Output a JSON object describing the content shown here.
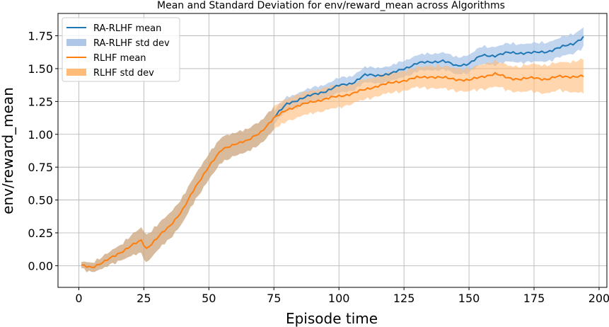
{
  "chart_data": {
    "type": "line",
    "title": "Mean and Standard Deviation for env/reward_mean across Algorithms",
    "xlabel": "Episode time",
    "ylabel": "env/reward_mean",
    "xlim": [
      -8,
      203
    ],
    "ylim": [
      -0.165,
      1.92
    ],
    "xticks": [
      0,
      25,
      50,
      75,
      100,
      125,
      150,
      175,
      200
    ],
    "xtick_labels": [
      "0",
      "25",
      "50",
      "75",
      "100",
      "125",
      "150",
      "175",
      "200"
    ],
    "yticks": [
      0.0,
      0.25,
      0.5,
      0.75,
      1.0,
      1.25,
      1.5,
      1.75
    ],
    "ytick_labels": [
      "0.00",
      "0.25",
      "0.50",
      "0.75",
      "1.00",
      "1.25",
      "1.50",
      "1.75"
    ],
    "grid": true,
    "legend_position": "top-left",
    "legend": [
      {
        "label": "RA-RLHF mean",
        "kind": "line",
        "color": "#1f77b4"
      },
      {
        "label": "RA-RLHF std dev",
        "kind": "band",
        "color": "#1f77b4"
      },
      {
        "label": "RLHF mean",
        "kind": "line",
        "color": "#ff7f0e"
      },
      {
        "label": "RLHF std dev",
        "kind": "band",
        "color": "#ff7f0e"
      }
    ],
    "series": [
      {
        "name": "RLHF mean",
        "color": "#ff7f0e",
        "band_color": "#ffbb78",
        "x": [
          1,
          5,
          10,
          15,
          20,
          24,
          26,
          30,
          35,
          40,
          45,
          50,
          55,
          60,
          65,
          70,
          75,
          80,
          85,
          90,
          95,
          100,
          105,
          110,
          115,
          120,
          125,
          130,
          135,
          140,
          145,
          150,
          155,
          160,
          165,
          170,
          175,
          180,
          185,
          190,
          194
        ],
        "values": [
          0.0,
          -0.01,
          0.03,
          0.09,
          0.15,
          0.19,
          0.13,
          0.21,
          0.3,
          0.43,
          0.6,
          0.76,
          0.88,
          0.93,
          0.95,
          1.02,
          1.12,
          1.19,
          1.22,
          1.25,
          1.27,
          1.29,
          1.31,
          1.34,
          1.37,
          1.39,
          1.41,
          1.43,
          1.44,
          1.43,
          1.42,
          1.41,
          1.44,
          1.46,
          1.43,
          1.42,
          1.43,
          1.42,
          1.44,
          1.44,
          1.44
        ],
        "std": [
          0.02,
          0.03,
          0.04,
          0.05,
          0.07,
          0.09,
          0.1,
          0.09,
          0.09,
          0.09,
          0.09,
          0.09,
          0.09,
          0.08,
          0.08,
          0.08,
          0.08,
          0.08,
          0.08,
          0.08,
          0.08,
          0.08,
          0.07,
          0.07,
          0.07,
          0.07,
          0.07,
          0.07,
          0.08,
          0.08,
          0.08,
          0.08,
          0.09,
          0.09,
          0.09,
          0.09,
          0.1,
          0.1,
          0.1,
          0.11,
          0.12
        ]
      },
      {
        "name": "RA-RLHF mean",
        "color": "#1f77b4",
        "band_color": "#aec7e8",
        "x": [
          75,
          80,
          85,
          90,
          95,
          100,
          105,
          110,
          115,
          120,
          125,
          130,
          135,
          140,
          145,
          150,
          155,
          160,
          165,
          170,
          175,
          180,
          185,
          190,
          194
        ],
        "values": [
          1.13,
          1.23,
          1.27,
          1.3,
          1.33,
          1.37,
          1.39,
          1.45,
          1.45,
          1.46,
          1.5,
          1.54,
          1.55,
          1.56,
          1.52,
          1.54,
          1.6,
          1.6,
          1.62,
          1.62,
          1.62,
          1.63,
          1.66,
          1.69,
          1.74
        ]
      }
    ],
    "band_shared_until_x": 75
  }
}
